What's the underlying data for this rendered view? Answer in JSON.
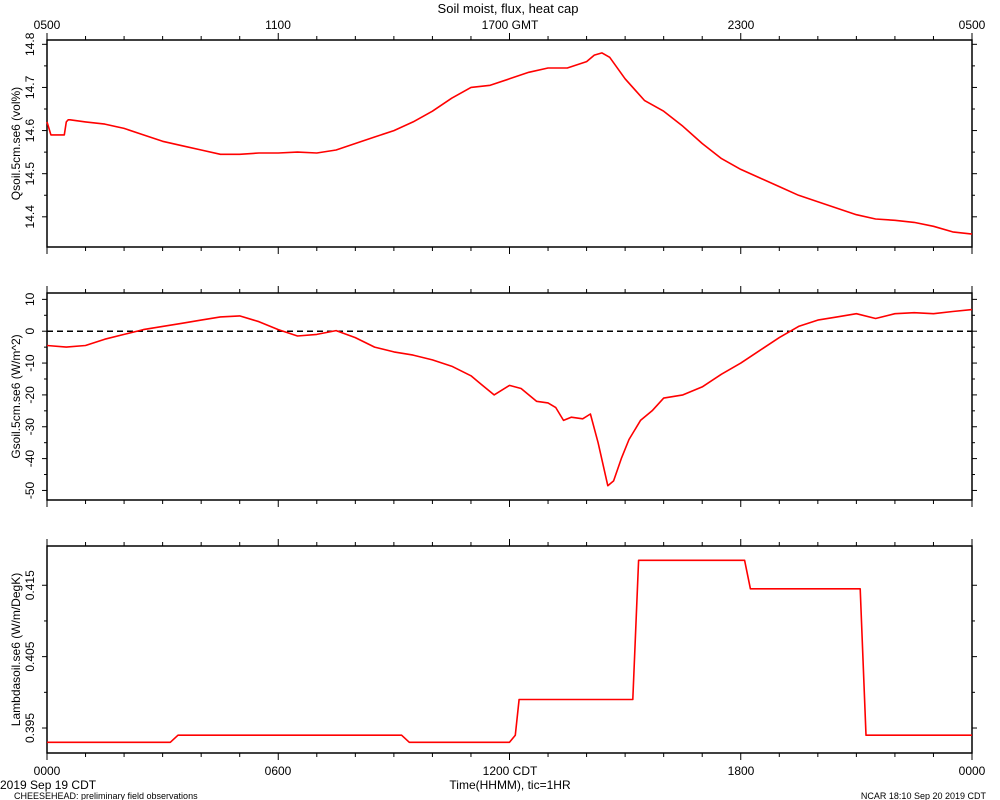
{
  "page": {
    "title": "Soil moist, flux, heat cap",
    "footer_left_date": "2019 Sep 19 CDT",
    "footer_left_project": "CHEESEHEAD: preliminary field observations",
    "footer_right": "NCAR 18:10 Sep 20 2019 CDT",
    "top_axis_labels": [
      "0500",
      "1100",
      "1700 GMT",
      "2300",
      "0500"
    ],
    "bottom_axis_labels": [
      "0000",
      "0600",
      "1200 CDT",
      "1800",
      "0000"
    ],
    "bottom_axis_title": "Time(HHMM), tic=1HR"
  },
  "colors": {
    "line": "#ff0000",
    "axis": "#000000",
    "zero_line": "#000000"
  },
  "chart_data": [
    {
      "type": "line",
      "ylabel": "Qsoil.5cm.se6 (vol%)",
      "ylim": [
        14.33,
        14.81
      ],
      "yticks": [
        14.4,
        14.5,
        14.6,
        14.7,
        14.8
      ],
      "ytick_labels": [
        "14.4",
        "14.5",
        "14.6",
        "14.7",
        "14.8"
      ],
      "xlim": [
        0,
        24
      ],
      "x": [
        0,
        0.1,
        0.2,
        0.45,
        0.5,
        0.55,
        0.6,
        1.0,
        1.5,
        2.0,
        2.5,
        3.0,
        3.5,
        4.0,
        4.5,
        5.0,
        5.5,
        6.0,
        6.5,
        7.0,
        7.5,
        8.0,
        8.5,
        9.0,
        9.5,
        10.0,
        10.5,
        11.0,
        11.5,
        12.0,
        12.5,
        13.0,
        13.5,
        14.0,
        14.2,
        14.4,
        14.6,
        15.0,
        15.5,
        16.0,
        16.5,
        17.0,
        17.5,
        18.0,
        18.5,
        19.0,
        19.5,
        20.0,
        20.5,
        21.0,
        21.5,
        22.0,
        22.5,
        23.0,
        23.5,
        24.0
      ],
      "values": [
        14.62,
        14.59,
        14.59,
        14.59,
        14.62,
        14.625,
        14.625,
        14.62,
        14.615,
        14.605,
        14.59,
        14.575,
        14.565,
        14.555,
        14.545,
        14.545,
        14.548,
        14.548,
        14.55,
        14.548,
        14.555,
        14.57,
        14.585,
        14.6,
        14.62,
        14.645,
        14.675,
        14.7,
        14.705,
        14.72,
        14.735,
        14.745,
        14.745,
        14.76,
        14.775,
        14.78,
        14.77,
        14.72,
        14.67,
        14.645,
        14.61,
        14.57,
        14.535,
        14.51,
        14.49,
        14.47,
        14.45,
        14.435,
        14.42,
        14.405,
        14.395,
        14.392,
        14.387,
        14.378,
        14.365,
        14.36
      ],
      "series": [
        {
          "name": "Qsoil.5cm.se6"
        }
      ]
    },
    {
      "type": "line",
      "ylabel": "Gsoil.5cm.se6 (W/m^2)",
      "ylim": [
        -53,
        12
      ],
      "yticks": [
        -50,
        -40,
        -30,
        -20,
        -10,
        0,
        10
      ],
      "ytick_labels": [
        "-50",
        "-40",
        "-30",
        "-20",
        "-10",
        "0",
        "10"
      ],
      "reference_line": {
        "y": 0,
        "style": "dashed"
      },
      "xlim": [
        0,
        24
      ],
      "x": [
        0,
        0.5,
        1.0,
        1.5,
        2.0,
        2.5,
        3.0,
        3.5,
        4.0,
        4.5,
        5.0,
        5.5,
        6.0,
        6.5,
        7.0,
        7.5,
        8.0,
        8.5,
        9.0,
        9.5,
        10.0,
        10.5,
        11.0,
        11.3,
        11.6,
        12.0,
        12.3,
        12.7,
        13.0,
        13.2,
        13.4,
        13.6,
        13.9,
        14.1,
        14.3,
        14.55,
        14.7,
        14.9,
        15.1,
        15.4,
        15.7,
        16.0,
        16.5,
        17.0,
        17.5,
        18.0,
        18.5,
        19.0,
        19.5,
        20.0,
        20.5,
        21.0,
        21.5,
        22.0,
        22.5,
        23.0,
        23.5,
        24.0
      ],
      "values": [
        -4.5,
        -5,
        -4.5,
        -2.5,
        -1,
        0.5,
        1.5,
        2.5,
        3.5,
        4.5,
        4.8,
        3,
        0.5,
        -1.5,
        -1,
        0.2,
        -2,
        -5,
        -6.5,
        -7.5,
        -9,
        -11,
        -14,
        -17,
        -20,
        -17,
        -18,
        -22,
        -22.5,
        -24,
        -28,
        -27,
        -27.5,
        -26,
        -35,
        -48.5,
        -47,
        -40,
        -34,
        -28,
        -25,
        -21,
        -20,
        -17.5,
        -13.5,
        -10,
        -6,
        -2,
        1.5,
        3.5,
        4.5,
        5.5,
        4,
        5.5,
        5.8,
        5.5,
        6.2,
        6.8
      ],
      "series": [
        {
          "name": "Gsoil.5cm.se6"
        }
      ]
    },
    {
      "type": "line",
      "ylabel": "Lambdasoil.se6 (W/m/DegK)",
      "ylim": [
        0.3915,
        0.4205
      ],
      "yticks": [
        0.395,
        0.405,
        0.415
      ],
      "ytick_labels": [
        "0.395",
        "0.405",
        "0.415"
      ],
      "xlim": [
        0,
        24
      ],
      "x": [
        0,
        3.2,
        3.4,
        9.2,
        9.4,
        12.0,
        12.15,
        12.25,
        15.2,
        15.35,
        18.1,
        18.25,
        21.1,
        21.25,
        24.0
      ],
      "values": [
        0.393,
        0.393,
        0.394,
        0.394,
        0.393,
        0.393,
        0.394,
        0.399,
        0.399,
        0.4185,
        0.4185,
        0.4145,
        0.4145,
        0.394,
        0.394
      ],
      "series": [
        {
          "name": "Lambdasoil.se6"
        }
      ]
    }
  ]
}
